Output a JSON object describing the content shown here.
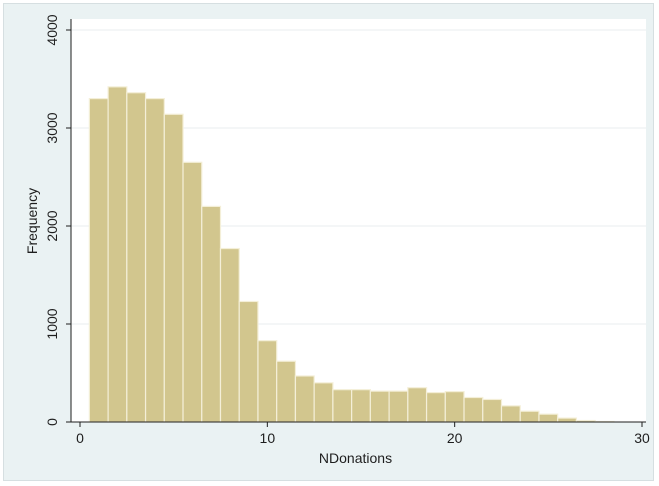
{
  "chart_data": {
    "type": "bar",
    "subtype": "histogram",
    "title": "",
    "xlabel": "NDonations",
    "ylabel": "Frequency",
    "xlim": [
      0,
      30
    ],
    "ylim": [
      0,
      4000
    ],
    "x_ticks": [
      "0",
      "10",
      "20",
      "30"
    ],
    "y_ticks": [
      "0",
      "1000",
      "2000",
      "3000",
      "4000"
    ],
    "bin_start": 0.5,
    "bin_width": 1,
    "values": [
      3300,
      3420,
      3360,
      3300,
      3140,
      2650,
      2200,
      1770,
      1230,
      830,
      620,
      470,
      400,
      330,
      330,
      315,
      315,
      350,
      300,
      310,
      250,
      230,
      165,
      110,
      80,
      40,
      15,
      5
    ],
    "grid": "horizontal",
    "legend": "none",
    "colors": {
      "bar_fill": "#d2c68e",
      "bar_edge": "#f4efd8",
      "plot_bg": "#ffffff",
      "outer_bg": "#eaf2f3",
      "grid": "#e8eeef",
      "axis": "#1e1e1e"
    }
  }
}
